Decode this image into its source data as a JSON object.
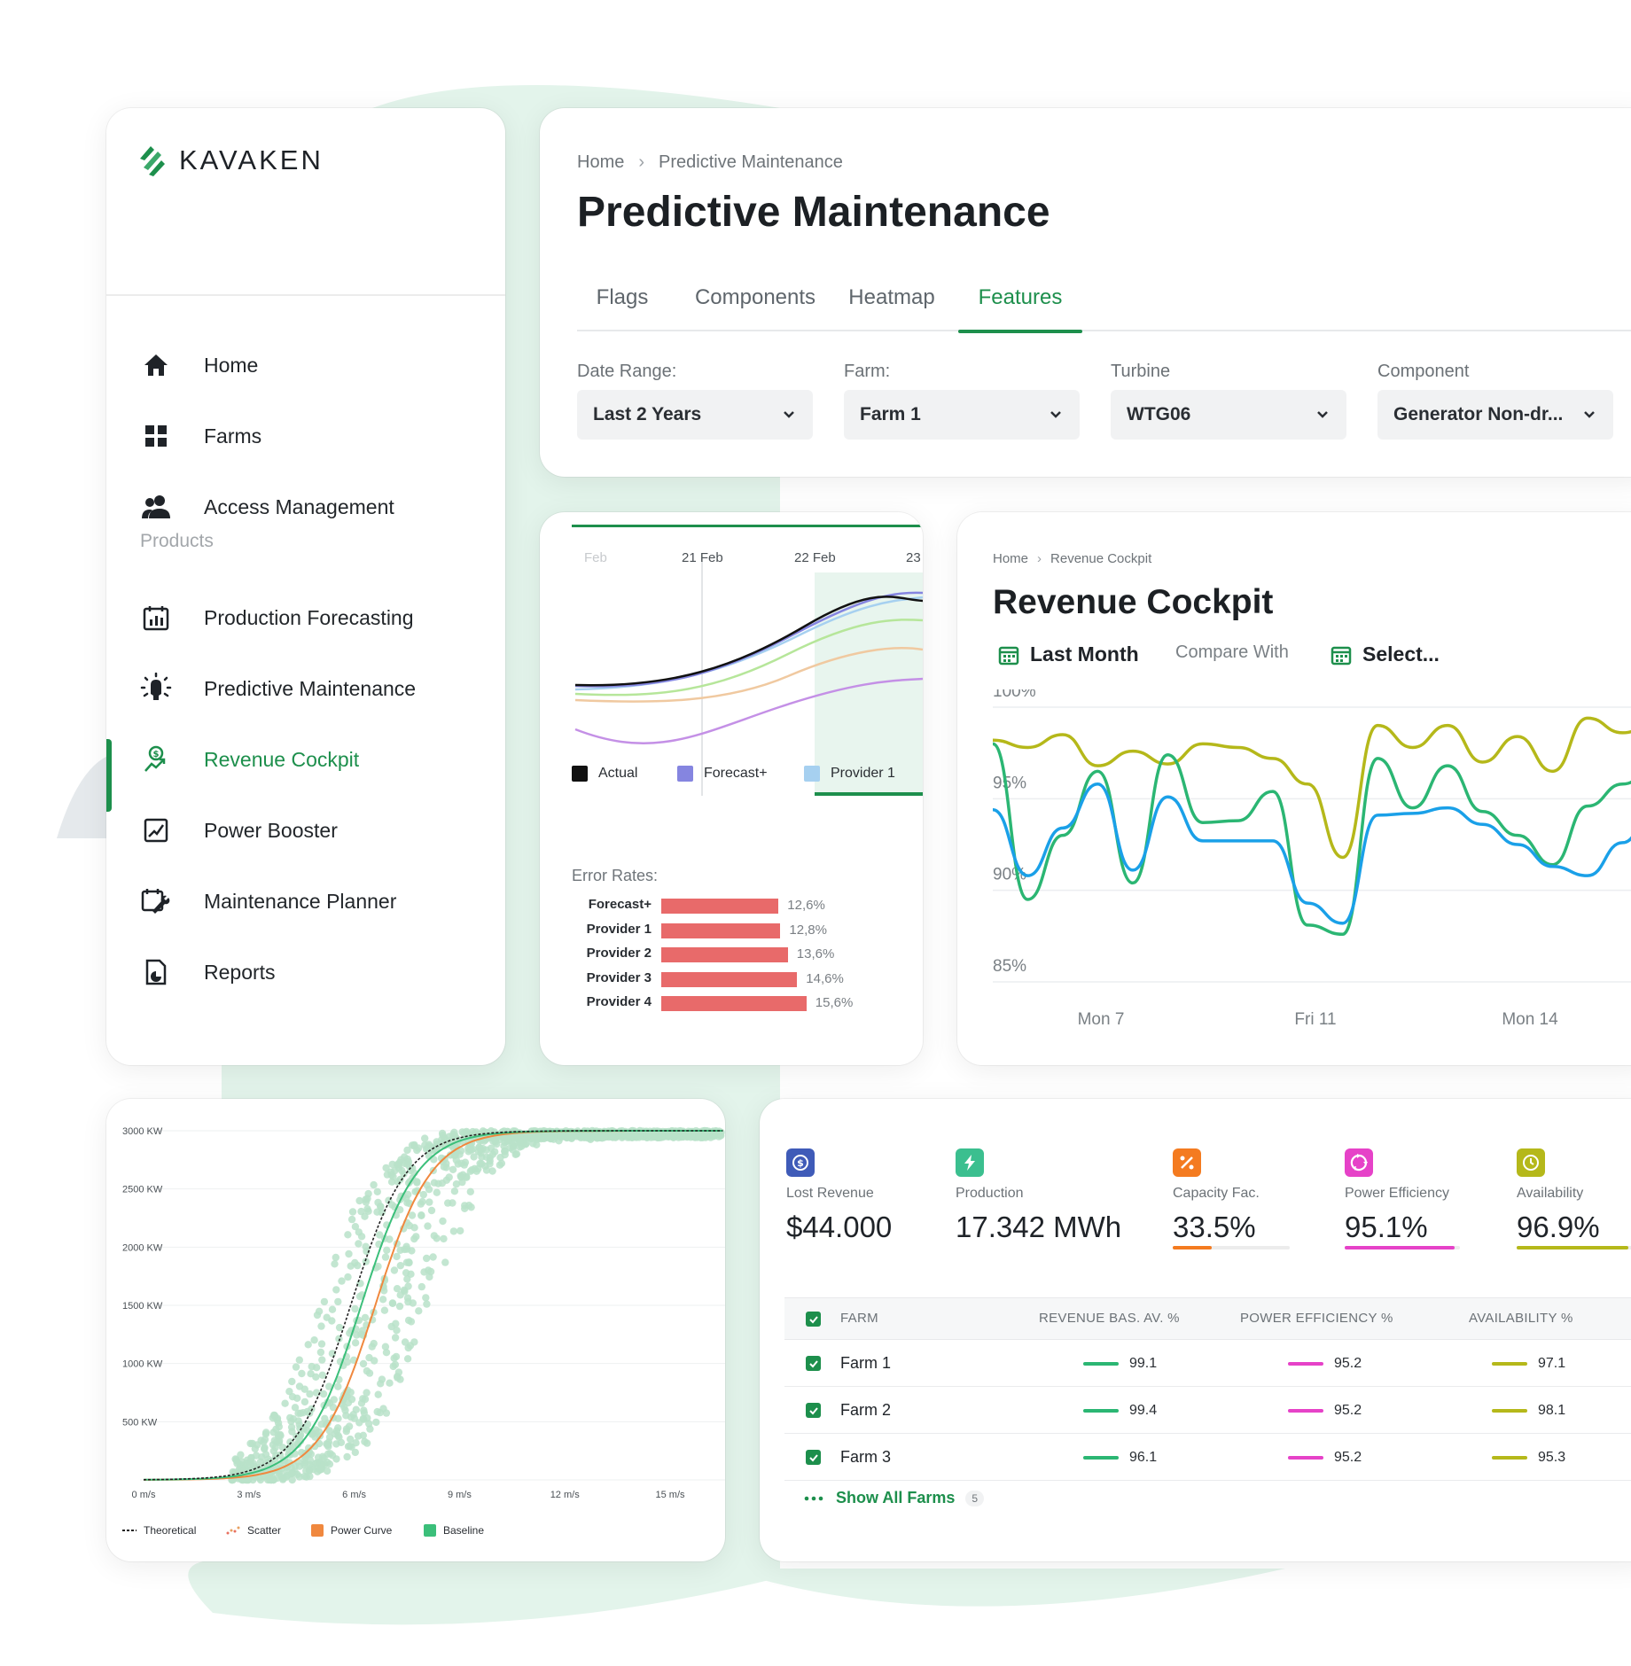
{
  "brand": {
    "name": "KAVAKEN",
    "accent": "#1d8f4c"
  },
  "sidebar": {
    "items": [
      {
        "label": "Home",
        "icon": "home-icon"
      },
      {
        "label": "Farms",
        "icon": "grid-icon"
      },
      {
        "label": "Access Management",
        "icon": "users-icon"
      }
    ],
    "products_label": "Products",
    "products": [
      {
        "label": "Production Forecasting",
        "icon": "calendar-chart-icon"
      },
      {
        "label": "Predictive Maintenance",
        "icon": "bulb-icon"
      },
      {
        "label": "Revenue Cockpit",
        "icon": "revenue-icon",
        "active": true
      },
      {
        "label": "Power Booster",
        "icon": "trend-box-icon"
      },
      {
        "label": "Maintenance Planner",
        "icon": "calendar-wrench-icon"
      },
      {
        "label": "Reports",
        "icon": "report-icon"
      }
    ]
  },
  "predictive": {
    "breadcrumb": [
      "Home",
      "Predictive Maintenance"
    ],
    "title": "Predictive Maintenance",
    "tabs": [
      "Flags",
      "Components",
      "Heatmap",
      "Features"
    ],
    "active_tab": "Features",
    "filters": [
      {
        "label": "Date Range:",
        "value": "Last 2 Years"
      },
      {
        "label": "Farm:",
        "value": "Farm 1"
      },
      {
        "label": "Turbine",
        "value": "WTG06"
      },
      {
        "label": "Component",
        "value": "Generator Non-dr..."
      }
    ]
  },
  "forecast": {
    "dates": [
      "Feb",
      "21 Feb",
      "22 Feb",
      "23"
    ],
    "legend": [
      {
        "label": "Actual",
        "color": "#111111"
      },
      {
        "label": "Forecast+",
        "color": "#8585e0"
      },
      {
        "label": "Provider 1",
        "color": "#a6d0f0"
      }
    ],
    "error_title": "Error Rates:",
    "chart_data": {
      "type": "bar",
      "categories": [
        "Forecast+",
        "Provider 1",
        "Provider 2",
        "Provider 3",
        "Provider 4"
      ],
      "values": [
        12.6,
        12.8,
        13.6,
        14.6,
        15.6
      ],
      "value_labels": [
        "12,6%",
        "12,8%",
        "13,6%",
        "14,6%",
        "15,6%"
      ]
    }
  },
  "revenue": {
    "breadcrumb": [
      "Home",
      "Revenue Cockpit"
    ],
    "title": "Revenue Cockpit",
    "period": "Last Month",
    "compare_label": "Compare With",
    "compare_value": "Select...",
    "chart_data": {
      "type": "line",
      "y_ticks": [
        "100%",
        "95%",
        "90%",
        "85%"
      ],
      "x_ticks": [
        "Mon 7",
        "Fri 11",
        "Mon 14"
      ],
      "ylim": [
        85,
        100
      ],
      "series": [
        {
          "color": "#b5b81a",
          "values": [
            98.2,
            97.8,
            98.5,
            96.8,
            97.6,
            96.9,
            98,
            97.8,
            97.2,
            95.8,
            91.8,
            99,
            97.8,
            99,
            97,
            98.4,
            96.5,
            99.4,
            98.6,
            99.2
          ]
        },
        {
          "color": "#2bb673",
          "values": [
            98,
            89.5,
            93,
            96.5,
            90.4,
            97.4,
            93.7,
            93.8,
            95.4,
            88.1,
            87.6,
            97.2,
            94.5,
            96.8,
            94.3,
            93,
            91.4,
            94.6,
            95.8,
            96.8
          ]
        },
        {
          "color": "#1aa0e8",
          "values": [
            94.4,
            90.8,
            93.4,
            95.8,
            91.1,
            95.1,
            92.7,
            92.7,
            92.7,
            89.3,
            88.2,
            94.1,
            94.2,
            94.5,
            93.6,
            92.5,
            91.3,
            90.8,
            92.6,
            94.9
          ]
        }
      ]
    }
  },
  "power_curve": {
    "y_ticks": [
      "3000 KW",
      "2500 KW",
      "2000 KW",
      "1500 KW",
      "1000 KW",
      "500 KW"
    ],
    "x_ticks": [
      "0 m/s",
      "3 m/s",
      "6 m/s",
      "9 m/s",
      "12 m/s",
      "15 m/s"
    ],
    "legend": [
      {
        "label": "Theoretical",
        "color": "#222222"
      },
      {
        "label": "Scatter",
        "color": "#e8a060"
      },
      {
        "label": "Power Curve",
        "color": "#f0883e"
      },
      {
        "label": "Baseline",
        "color": "#3bbf7a"
      }
    ]
  },
  "kpis": [
    {
      "label": "Lost Revenue",
      "value": "$44.000",
      "icon": "dollar-icon",
      "color": "#3f5bb8"
    },
    {
      "label": "Production",
      "value": "17.342 MWh",
      "icon": "bolt-icon",
      "color": "#3bbf8f"
    },
    {
      "label": "Capacity Fac.",
      "value": "33.5%",
      "icon": "percent-icon",
      "color": "#f47b20",
      "progress": 33.5
    },
    {
      "label": "Power Efficiency",
      "value": "95.1%",
      "icon": "recycle-icon",
      "color": "#e642c8",
      "progress": 95.1
    },
    {
      "label": "Availability",
      "value": "96.9%",
      "icon": "clock-icon",
      "color": "#b5b81a",
      "progress": 96.9
    }
  ],
  "table": {
    "headers": [
      "FARM",
      "REVENUE BAS. AV. %",
      "POWER EFFICIENCY %",
      "AVAILABILITY %"
    ],
    "rows": [
      {
        "farm": "Farm 1",
        "revenue": "99.1",
        "efficiency": "95.2",
        "availability": "97.1"
      },
      {
        "farm": "Farm 2",
        "revenue": "99.4",
        "efficiency": "95.2",
        "availability": "98.1"
      },
      {
        "farm": "Farm 3",
        "revenue": "96.1",
        "efficiency": "95.2",
        "availability": "95.3"
      }
    ],
    "show_all_label": "Show All Farms",
    "show_all_count": "5"
  }
}
